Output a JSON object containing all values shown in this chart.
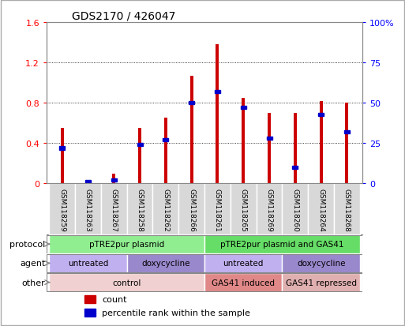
{
  "title": "GDS2170 / 426047",
  "samples": [
    "GSM118259",
    "GSM118263",
    "GSM118267",
    "GSM118258",
    "GSM118262",
    "GSM118266",
    "GSM118261",
    "GSM118265",
    "GSM118269",
    "GSM118260",
    "GSM118264",
    "GSM118268"
  ],
  "count_values": [
    0.55,
    0.03,
    0.1,
    0.55,
    0.65,
    1.07,
    1.38,
    0.85,
    0.7,
    0.7,
    0.82,
    0.8
  ],
  "percentile_values": [
    22,
    1,
    2,
    24,
    27,
    50,
    57,
    47,
    28,
    10,
    43,
    32
  ],
  "ylim_left": [
    0,
    1.6
  ],
  "ylim_right": [
    0,
    100
  ],
  "yticks_left": [
    0,
    0.4,
    0.8,
    1.2,
    1.6
  ],
  "yticks_right": [
    0,
    25,
    50,
    75,
    100
  ],
  "ytick_labels_left": [
    "0",
    "0.4",
    "0.8",
    "1.2",
    "1.6"
  ],
  "ytick_labels_right": [
    "0",
    "25",
    "50",
    "75",
    "100%"
  ],
  "bar_color": "#cc0000",
  "percentile_color": "#0000cc",
  "protocol_groups": [
    {
      "label": "pTRE2pur plasmid",
      "start": 0,
      "end": 6,
      "color": "#90ee90"
    },
    {
      "label": "pTRE2pur plasmid and GAS41",
      "start": 6,
      "end": 12,
      "color": "#66dd66"
    }
  ],
  "agent_groups": [
    {
      "label": "untreated",
      "start": 0,
      "end": 3,
      "color": "#c0b0f0"
    },
    {
      "label": "doxycycline",
      "start": 3,
      "end": 6,
      "color": "#9988cc"
    },
    {
      "label": "untreated",
      "start": 6,
      "end": 9,
      "color": "#c0b0f0"
    },
    {
      "label": "doxycycline",
      "start": 9,
      "end": 12,
      "color": "#9988cc"
    }
  ],
  "other_groups": [
    {
      "label": "control",
      "start": 0,
      "end": 6,
      "color": "#f0d0d0"
    },
    {
      "label": "GAS41 induced",
      "start": 6,
      "end": 9,
      "color": "#e08888"
    },
    {
      "label": "GAS41 repressed",
      "start": 9,
      "end": 12,
      "color": "#e0b0b0"
    }
  ],
  "row_labels": [
    "protocol",
    "agent",
    "other"
  ],
  "legend_count_label": "count",
  "legend_percentile_label": "percentile rank within the sample",
  "bar_width": 0.12,
  "tick_area_color": "#d8d8d8",
  "spine_color": "#888888",
  "fig_border_color": "#aaaaaa"
}
